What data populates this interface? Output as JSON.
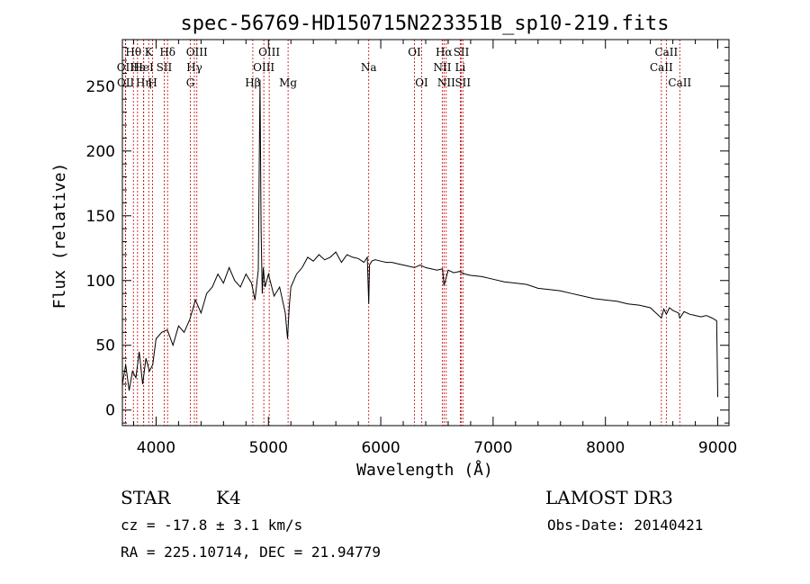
{
  "chart_data": {
    "type": "line",
    "title": "spec-56769-HD150715N223351B_sp10-219.fits",
    "xlabel": "Wavelength (Å)",
    "ylabel": "Flux (relative)",
    "xlim": [
      3700,
      9100
    ],
    "ylim": [
      -12,
      286
    ],
    "xticks": [
      4000,
      5000,
      6000,
      7000,
      8000,
      9000
    ],
    "yticks": [
      0,
      50,
      100,
      150,
      200,
      250
    ],
    "xtick_labels": [
      "4000",
      "5000",
      "6000",
      "7000",
      "8000",
      "9000"
    ],
    "ytick_labels": [
      "0",
      "50",
      "100",
      "150",
      "200",
      "250"
    ],
    "series": [
      {
        "name": "spectrum",
        "color": "#000000",
        "x": [
          3700,
          3730,
          3760,
          3790,
          3820,
          3850,
          3880,
          3910,
          3940,
          3970,
          4000,
          4050,
          4100,
          4150,
          4200,
          4250,
          4300,
          4350,
          4400,
          4450,
          4500,
          4550,
          4600,
          4650,
          4700,
          4750,
          4800,
          4850,
          4880,
          4910,
          4925,
          4935,
          4945,
          4955,
          4970,
          5000,
          5050,
          5100,
          5150,
          5170,
          5185,
          5200,
          5250,
          5300,
          5350,
          5400,
          5450,
          5500,
          5550,
          5600,
          5650,
          5700,
          5750,
          5800,
          5850,
          5880,
          5893,
          5900,
          5920,
          5950,
          6000,
          6050,
          6100,
          6150,
          6200,
          6250,
          6300,
          6350,
          6400,
          6450,
          6500,
          6550,
          6563,
          6600,
          6650,
          6700,
          6750,
          6800,
          6900,
          7000,
          7100,
          7200,
          7300,
          7400,
          7500,
          7600,
          7700,
          7800,
          7900,
          8000,
          8100,
          8200,
          8300,
          8400,
          8498,
          8520,
          8542,
          8570,
          8600,
          8650,
          8662,
          8700,
          8750,
          8800,
          8850,
          8900,
          8950,
          8990,
          9000
        ],
        "y": [
          20,
          35,
          15,
          30,
          25,
          45,
          20,
          40,
          30,
          35,
          55,
          60,
          62,
          50,
          65,
          60,
          70,
          85,
          75,
          90,
          95,
          105,
          98,
          110,
          100,
          95,
          105,
          98,
          85,
          108,
          255,
          140,
          90,
          110,
          95,
          105,
          88,
          95,
          75,
          55,
          80,
          95,
          105,
          110,
          118,
          115,
          120,
          116,
          118,
          122,
          114,
          120,
          118,
          117,
          114,
          118,
          82,
          112,
          115,
          116,
          115,
          114,
          114,
          113,
          112,
          111,
          110,
          112,
          110,
          109,
          108,
          109,
          96,
          108,
          106,
          107,
          105,
          104,
          103,
          101,
          99,
          98,
          97,
          94,
          93,
          92,
          90,
          88,
          86,
          85,
          84,
          82,
          81,
          79,
          71,
          78,
          74,
          79,
          77,
          75,
          71,
          76,
          74,
          73,
          72,
          73,
          71,
          69,
          10
        ]
      }
    ],
    "line_markers": [
      {
        "label": "Hθ",
        "wavelength": 3798,
        "row": 1
      },
      {
        "label": "OII",
        "wavelength": 3727,
        "row": 2
      },
      {
        "label": "OII",
        "wavelength": 3729,
        "row": 3
      },
      {
        "label": "Hε",
        "wavelength": 3835,
        "row": 2
      },
      {
        "label": "Hη",
        "wavelength": 3890,
        "row": 3
      },
      {
        "label": "K",
        "wavelength": 3934,
        "row": 1
      },
      {
        "label": "HeI",
        "wavelength": 3889,
        "row": 2
      },
      {
        "label": "H",
        "wavelength": 3969,
        "row": 3
      },
      {
        "label": "Hδ",
        "wavelength": 4102,
        "row": 1
      },
      {
        "label": "SII",
        "wavelength": 4072,
        "row": 2
      },
      {
        "label": "OIII",
        "wavelength": 4363,
        "row": 1
      },
      {
        "label": "Hγ",
        "wavelength": 4341,
        "row": 2
      },
      {
        "label": "G",
        "wavelength": 4305,
        "row": 3
      },
      {
        "label": "Hβ",
        "wavelength": 4861,
        "row": 3
      },
      {
        "label": "OIII",
        "wavelength": 5007,
        "row": 1
      },
      {
        "label": "OIII",
        "wavelength": 4959,
        "row": 2
      },
      {
        "label": "Mg",
        "wavelength": 5175,
        "row": 3
      },
      {
        "label": "Na",
        "wavelength": 5893,
        "row": 2
      },
      {
        "label": "OI",
        "wavelength": 6300,
        "row": 1
      },
      {
        "label": "OI",
        "wavelength": 6364,
        "row": 3
      },
      {
        "label": "Hα",
        "wavelength": 6563,
        "row": 1
      },
      {
        "label": "NII",
        "wavelength": 6548,
        "row": 2
      },
      {
        "label": "NII",
        "wavelength": 6583,
        "row": 3
      },
      {
        "label": "SII",
        "wavelength": 6717,
        "row": 1
      },
      {
        "label": "Li",
        "wavelength": 6708,
        "row": 2
      },
      {
        "label": "SII",
        "wavelength": 6731,
        "row": 3
      },
      {
        "label": "CaII",
        "wavelength": 8542,
        "row": 1
      },
      {
        "label": "CaII",
        "wavelength": 8498,
        "row": 2
      },
      {
        "label": "CaII",
        "wavelength": 8662,
        "row": 3
      }
    ]
  },
  "info": {
    "class_label": "STAR",
    "subclass": "K4",
    "survey": "LAMOST DR3",
    "redshift": "cz = -17.8 ± 3.1 km/s",
    "obs_date": "Obs-Date: 20140421",
    "coordinates": "RA = 225.10714, DEC =  21.94779"
  },
  "colors": {
    "marker_line": "#c00000",
    "spectrum": "#000000"
  }
}
